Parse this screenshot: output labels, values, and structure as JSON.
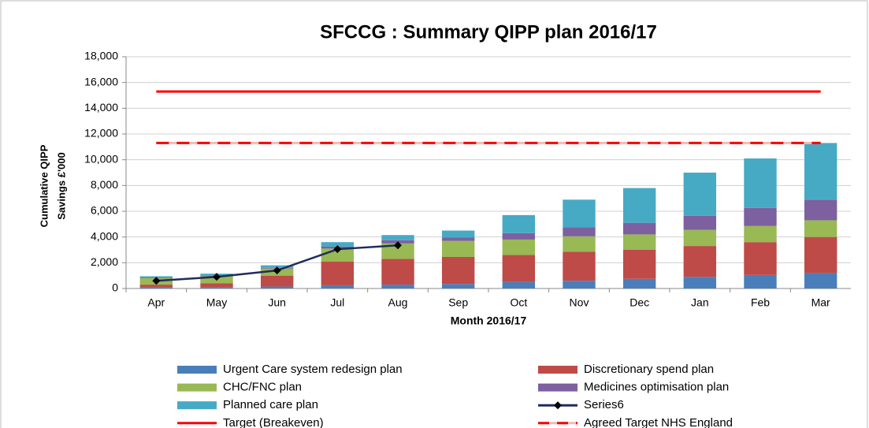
{
  "chart_data": {
    "type": "stacked_bar_line",
    "title": "SFCCG : Summary QIPP plan 2016/17",
    "x_label": "Month 2016/17",
    "y_label": [
      "Cumulative QIPP",
      "Savings £'000"
    ],
    "categories": [
      "Apr",
      "May",
      "Jun",
      "Jul",
      "Aug",
      "Sep",
      "Oct",
      "Nov",
      "Dec",
      "Jan",
      "Feb",
      "Mar"
    ],
    "ylim": [
      0,
      18000
    ],
    "yticks": [
      0,
      {
        "value": 2000,
        "label": "2,000"
      },
      {
        "value": 4000,
        "label": "4,000"
      },
      {
        "value": 6000,
        "label": "6,000"
      },
      {
        "value": 8000,
        "label": "8,000"
      },
      {
        "value": 10000,
        "label": "10,000"
      },
      {
        "value": 12000,
        "label": "12,000"
      },
      {
        "value": 14000,
        "label": "14,000"
      },
      {
        "value": 16000,
        "label": "16,000"
      },
      {
        "value": 18000,
        "label": "18,000"
      }
    ],
    "grid": true,
    "legend": "bottom",
    "series": [
      {
        "name": "Urgent Care system redesign plan",
        "kind": "bar",
        "color": "#4a7ebb",
        "values": [
          100,
          100,
          150,
          250,
          300,
          350,
          500,
          600,
          750,
          900,
          1050,
          1200
        ]
      },
      {
        "name": "Discretionary spend plan",
        "kind": "bar",
        "color": "#be4b48",
        "values": [
          200,
          300,
          850,
          1850,
          2000,
          2100,
          2100,
          2250,
          2250,
          2400,
          2550,
          2800
        ]
      },
      {
        "name": "CHC/FNC plan",
        "kind": "bar",
        "color": "#98b954",
        "values": [
          500,
          550,
          550,
          1000,
          1200,
          1250,
          1200,
          1200,
          1200,
          1250,
          1250,
          1300
        ]
      },
      {
        "name": "Medicines optimisation plan",
        "kind": "bar",
        "color": "#7d60a0",
        "values": [
          50,
          50,
          50,
          150,
          250,
          250,
          500,
          700,
          900,
          1100,
          1400,
          1600
        ]
      },
      {
        "name": "Planned care plan",
        "kind": "bar",
        "color": "#46aac5",
        "values": [
          100,
          150,
          200,
          350,
          400,
          550,
          1400,
          2150,
          2700,
          3350,
          3850,
          4400
        ]
      },
      {
        "name": "Series6",
        "kind": "line_marker",
        "color": "#1f2d5a",
        "values": [
          600,
          900,
          1400,
          3050,
          3350,
          null,
          null,
          null,
          null,
          null,
          null,
          null
        ]
      },
      {
        "name": "Target (Breakeven)",
        "kind": "line",
        "color": "#ff0000",
        "values": [
          15300,
          15300,
          15300,
          15300,
          15300,
          15300,
          15300,
          15300,
          15300,
          15300,
          15300,
          15300
        ]
      },
      {
        "name": "Agreed Target NHS England",
        "kind": "dashed",
        "color": "#ff0000",
        "values": [
          11300,
          11300,
          11300,
          11300,
          11300,
          11300,
          11300,
          11300,
          11300,
          11300,
          11300,
          11300
        ]
      }
    ]
  }
}
